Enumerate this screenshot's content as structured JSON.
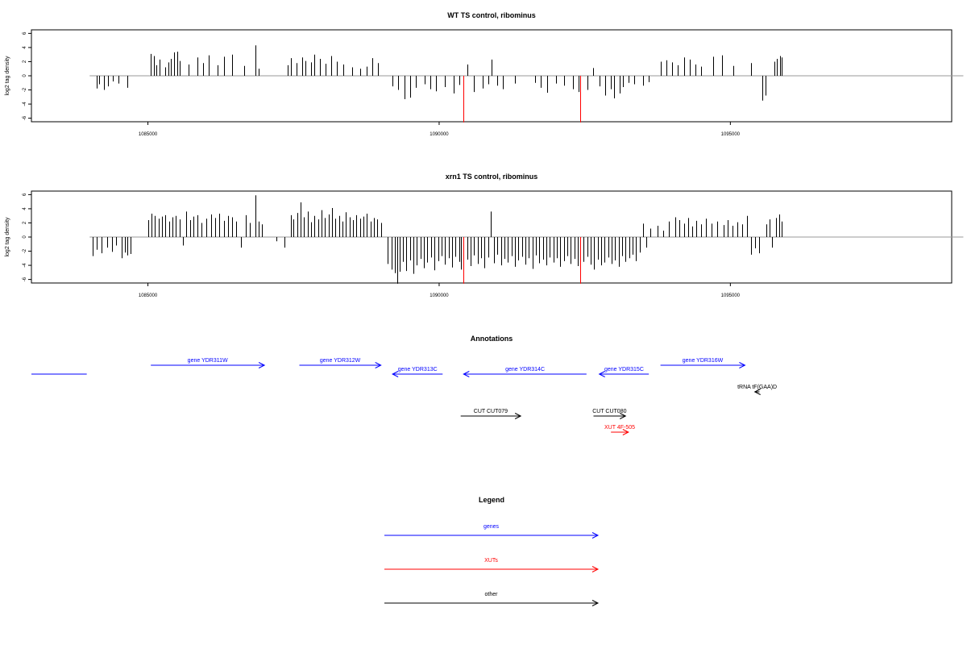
{
  "chart_data": [
    {
      "type": "bar",
      "title": "WT TS control, ribominus",
      "ylabel": "log2 tag density",
      "xlabel": "",
      "xlim": [
        1083000,
        1098800
      ],
      "ylim": [
        -6.5,
        6.5
      ],
      "yticks": [
        6,
        4,
        2,
        0,
        -2,
        -4,
        -6
      ],
      "xticks": [
        1085000,
        1090000,
        1095000
      ],
      "xtick_labels": [
        "1085000",
        "1090000",
        "1095000"
      ],
      "baseline": [
        1084000,
        1099000
      ],
      "colors": {
        "bars": "#000000",
        "highlight": "#ff0000",
        "baseline": "#999999"
      },
      "bars": [
        [
          1084120,
          -1.8
        ],
        [
          1084160,
          -1.2
        ],
        [
          1084250,
          -2
        ],
        [
          1084320,
          -1.5
        ],
        [
          1084400,
          -0.8
        ],
        [
          1084500,
          -1.1
        ],
        [
          1084640,
          -1.7
        ],
        [
          1085050,
          3.1
        ],
        [
          1085100,
          2.8
        ],
        [
          1085150,
          1.5
        ],
        [
          1085200,
          2.3
        ],
        [
          1085300,
          1.2
        ],
        [
          1085350,
          1.9
        ],
        [
          1085400,
          2.4
        ],
        [
          1085450,
          3.3
        ],
        [
          1085500,
          3.4
        ],
        [
          1085550,
          2.1
        ],
        [
          1085700,
          1.6
        ],
        [
          1085850,
          2.6
        ],
        [
          1085950,
          1.8
        ],
        [
          1086050,
          2.9
        ],
        [
          1086200,
          1.5
        ],
        [
          1086300,
          2.7
        ],
        [
          1086450,
          3.0
        ],
        [
          1086650,
          1.4
        ],
        [
          1086850,
          4.3
        ],
        [
          1086900,
          1.0
        ],
        [
          1087400,
          1.5
        ],
        [
          1087450,
          2.5
        ],
        [
          1087550,
          1.8
        ],
        [
          1087650,
          2.6
        ],
        [
          1087700,
          2.1
        ],
        [
          1087800,
          1.9
        ],
        [
          1087850,
          3.0
        ],
        [
          1087950,
          2.4
        ],
        [
          1088050,
          1.7
        ],
        [
          1088150,
          2.8
        ],
        [
          1088250,
          2.0
        ],
        [
          1088350,
          1.6
        ],
        [
          1088500,
          1.2
        ],
        [
          1088650,
          1.0
        ],
        [
          1088750,
          1.3
        ],
        [
          1088850,
          2.5
        ],
        [
          1088950,
          1.8
        ],
        [
          1089200,
          -1.5
        ],
        [
          1089300,
          -2.0
        ],
        [
          1089400,
          -3.3
        ],
        [
          1089500,
          -3.1
        ],
        [
          1089600,
          -1.7
        ],
        [
          1089750,
          -1.2
        ],
        [
          1089850,
          -1.9
        ],
        [
          1089950,
          -2.2
        ],
        [
          1090100,
          -1.6
        ],
        [
          1090250,
          -2.5
        ],
        [
          1090350,
          -1.3
        ],
        [
          1090420,
          -6.6
        ],
        [
          1090480,
          1.6
        ],
        [
          1090600,
          -2.3
        ],
        [
          1090750,
          -1.8
        ],
        [
          1090850,
          -1.2
        ],
        [
          1090900,
          2.3
        ],
        [
          1091000,
          -1.4
        ],
        [
          1091100,
          -1.9
        ],
        [
          1091300,
          -1.1
        ],
        [
          1091650,
          -1.0
        ],
        [
          1091750,
          -1.7
        ],
        [
          1091850,
          -2.4
        ],
        [
          1092000,
          -1.1
        ],
        [
          1092150,
          -1.4
        ],
        [
          1092300,
          -1.9
        ],
        [
          1092400,
          -2.3
        ],
        [
          1092420,
          -6.6
        ],
        [
          1092550,
          -2.0
        ],
        [
          1092650,
          1.1
        ],
        [
          1092750,
          -1.5
        ],
        [
          1092850,
          -2.8
        ],
        [
          1092950,
          -1.9
        ],
        [
          1093000,
          -3.2
        ],
        [
          1093100,
          -2.5
        ],
        [
          1093150,
          -1.6
        ],
        [
          1093250,
          -1.0
        ],
        [
          1093350,
          -1.2
        ],
        [
          1093500,
          -1.4
        ],
        [
          1093600,
          -0.9
        ],
        [
          1093800,
          2.0
        ],
        [
          1093900,
          2.2
        ],
        [
          1094000,
          1.9
        ],
        [
          1094100,
          1.5
        ],
        [
          1094200,
          2.6
        ],
        [
          1094300,
          2.3
        ],
        [
          1094400,
          1.6
        ],
        [
          1094500,
          1.3
        ],
        [
          1094700,
          2.7
        ],
        [
          1094850,
          2.9
        ],
        [
          1095050,
          1.4
        ],
        [
          1095350,
          1.8
        ],
        [
          1095550,
          -3.5
        ],
        [
          1095600,
          -2.8
        ],
        [
          1095750,
          2.0
        ],
        [
          1095800,
          2.4
        ],
        [
          1095850,
          2.8
        ],
        [
          1095880,
          2.6
        ]
      ],
      "highlight_x": [
        1090420,
        1092420
      ]
    },
    {
      "type": "bar",
      "title": "xrn1 TS control, ribominus",
      "ylabel": "log2 tag density",
      "xlabel": "",
      "xlim": [
        1083000,
        1098800
      ],
      "ylim": [
        -6.5,
        6.5
      ],
      "yticks": [
        6,
        4,
        2,
        0,
        -2,
        -4,
        -6
      ],
      "xticks": [
        1085000,
        1090000,
        1095000
      ],
      "xtick_labels": [
        "1085000",
        "1090000",
        "1095000"
      ],
      "baseline": [
        1084000,
        1099000
      ],
      "colors": {
        "bars": "#000000",
        "highlight": "#ff0000",
        "baseline": "#999999"
      },
      "bars": [
        [
          1084050,
          -2.7
        ],
        [
          1084120,
          -1.8
        ],
        [
          1084200,
          -2.3
        ],
        [
          1084300,
          -1.5
        ],
        [
          1084380,
          -2.1
        ],
        [
          1084450,
          -1.2
        ],
        [
          1084550,
          -3.0
        ],
        [
          1084600,
          -2.2
        ],
        [
          1084650,
          -2.6
        ],
        [
          1084700,
          -2.4
        ],
        [
          1085000,
          2.4
        ],
        [
          1085060,
          3.3
        ],
        [
          1085120,
          3.0
        ],
        [
          1085180,
          2.6
        ],
        [
          1085240,
          2.9
        ],
        [
          1085300,
          3.1
        ],
        [
          1085360,
          2.2
        ],
        [
          1085420,
          2.8
        ],
        [
          1085480,
          3.0
        ],
        [
          1085540,
          2.5
        ],
        [
          1085600,
          -1.2
        ],
        [
          1085660,
          3.6
        ],
        [
          1085720,
          2.4
        ],
        [
          1085780,
          2.9
        ],
        [
          1085850,
          3.1
        ],
        [
          1085920,
          2.0
        ],
        [
          1086000,
          2.6
        ],
        [
          1086080,
          3.2
        ],
        [
          1086150,
          2.7
        ],
        [
          1086220,
          3.3
        ],
        [
          1086300,
          2.3
        ],
        [
          1086380,
          3.0
        ],
        [
          1086450,
          2.8
        ],
        [
          1086520,
          2.2
        ],
        [
          1086600,
          -1.5
        ],
        [
          1086680,
          3.1
        ],
        [
          1086750,
          2.0
        ],
        [
          1086850,
          5.9
        ],
        [
          1086900,
          2.2
        ],
        [
          1086950,
          1.8
        ],
        [
          1087200,
          -0.6
        ],
        [
          1087350,
          -1.5
        ],
        [
          1087450,
          3.1
        ],
        [
          1087500,
          2.5
        ],
        [
          1087560,
          3.4
        ],
        [
          1087620,
          4.9
        ],
        [
          1087680,
          2.8
        ],
        [
          1087740,
          3.6
        ],
        [
          1087800,
          2.1
        ],
        [
          1087860,
          3.0
        ],
        [
          1087920,
          2.5
        ],
        [
          1087980,
          3.8
        ],
        [
          1088040,
          2.7
        ],
        [
          1088100,
          3.2
        ],
        [
          1088160,
          4.1
        ],
        [
          1088220,
          2.6
        ],
        [
          1088280,
          3.0
        ],
        [
          1088340,
          2.2
        ],
        [
          1088400,
          3.5
        ],
        [
          1088460,
          2.8
        ],
        [
          1088520,
          2.4
        ],
        [
          1088580,
          3.1
        ],
        [
          1088640,
          2.6
        ],
        [
          1088700,
          2.9
        ],
        [
          1088760,
          3.3
        ],
        [
          1088820,
          2.2
        ],
        [
          1088880,
          2.7
        ],
        [
          1088940,
          2.5
        ],
        [
          1089000,
          2.0
        ],
        [
          1089120,
          -3.8
        ],
        [
          1089180,
          -4.6
        ],
        [
          1089240,
          -5.1
        ],
        [
          1089280,
          -6.6
        ],
        [
          1089320,
          -4.9
        ],
        [
          1089380,
          -3.5
        ],
        [
          1089440,
          -4.8
        ],
        [
          1089500,
          -3.3
        ],
        [
          1089560,
          -5.2
        ],
        [
          1089620,
          -4.0
        ],
        [
          1089680,
          -3.1
        ],
        [
          1089740,
          -4.4
        ],
        [
          1089800,
          -3.6
        ],
        [
          1089860,
          -2.9
        ],
        [
          1089920,
          -4.7
        ],
        [
          1089980,
          -3.4
        ],
        [
          1090040,
          -2.7
        ],
        [
          1090100,
          -3.9
        ],
        [
          1090160,
          -3.0
        ],
        [
          1090220,
          -4.3
        ],
        [
          1090280,
          -2.8
        ],
        [
          1090340,
          -3.5
        ],
        [
          1090380,
          -4.6
        ],
        [
          1090420,
          -6.6
        ],
        [
          1090480,
          -3.2
        ],
        [
          1090540,
          -4.1
        ],
        [
          1090600,
          -2.6
        ],
        [
          1090660,
          -3.8
        ],
        [
          1090720,
          -3.0
        ],
        [
          1090780,
          -4.4
        ],
        [
          1090840,
          -2.9
        ],
        [
          1090880,
          3.6
        ],
        [
          1090940,
          -3.7
        ],
        [
          1091000,
          -2.5
        ],
        [
          1091060,
          -4.0
        ],
        [
          1091120,
          -3.1
        ],
        [
          1091180,
          -3.6
        ],
        [
          1091240,
          -2.7
        ],
        [
          1091300,
          -4.2
        ],
        [
          1091360,
          -3.3
        ],
        [
          1091420,
          -2.8
        ],
        [
          1091480,
          -3.9
        ],
        [
          1091540,
          -3.0
        ],
        [
          1091600,
          -4.5
        ],
        [
          1091660,
          -2.6
        ],
        [
          1091720,
          -3.7
        ],
        [
          1091780,
          -3.2
        ],
        [
          1091840,
          -4.0
        ],
        [
          1091900,
          -2.9
        ],
        [
          1091960,
          -3.6
        ],
        [
          1092020,
          -3.0
        ],
        [
          1092080,
          -4.2
        ],
        [
          1092140,
          -3.4
        ],
        [
          1092200,
          -2.7
        ],
        [
          1092260,
          -3.8
        ],
        [
          1092320,
          -3.1
        ],
        [
          1092380,
          -4.1
        ],
        [
          1092420,
          -6.6
        ],
        [
          1092480,
          -3.5
        ],
        [
          1092540,
          -2.8
        ],
        [
          1092600,
          -3.9
        ],
        [
          1092660,
          -4.6
        ],
        [
          1092720,
          -3.2
        ],
        [
          1092780,
          -4.0
        ],
        [
          1092840,
          -3.6
        ],
        [
          1092900,
          -2.9
        ],
        [
          1092960,
          -3.8
        ],
        [
          1093020,
          -3.3
        ],
        [
          1093080,
          -4.2
        ],
        [
          1093140,
          -2.7
        ],
        [
          1093200,
          -3.5
        ],
        [
          1093260,
          -3.0
        ],
        [
          1093320,
          -2.5
        ],
        [
          1093380,
          -3.4
        ],
        [
          1093440,
          -2.2
        ],
        [
          1093500,
          1.9
        ],
        [
          1093560,
          -1.5
        ],
        [
          1093620,
          1.2
        ],
        [
          1093750,
          1.6
        ],
        [
          1093850,
          0.9
        ],
        [
          1093950,
          2.2
        ],
        [
          1094050,
          2.8
        ],
        [
          1094120,
          2.4
        ],
        [
          1094200,
          1.9
        ],
        [
          1094280,
          2.7
        ],
        [
          1094350,
          1.5
        ],
        [
          1094420,
          2.3
        ],
        [
          1094500,
          1.8
        ],
        [
          1094580,
          2.6
        ],
        [
          1094680,
          1.9
        ],
        [
          1094780,
          2.2
        ],
        [
          1094880,
          1.7
        ],
        [
          1094960,
          2.4
        ],
        [
          1095040,
          1.6
        ],
        [
          1095120,
          2.1
        ],
        [
          1095200,
          1.8
        ],
        [
          1095280,
          3.0
        ],
        [
          1095350,
          -2.5
        ],
        [
          1095420,
          -1.6
        ],
        [
          1095500,
          -2.3
        ],
        [
          1095620,
          1.8
        ],
        [
          1095680,
          2.5
        ],
        [
          1095720,
          -1.5
        ],
        [
          1095780,
          2.7
        ],
        [
          1095840,
          3.2
        ],
        [
          1095880,
          2.2
        ]
      ],
      "highlight_x": [
        1090420,
        1092420
      ]
    }
  ],
  "annotations": {
    "title": "Annotations",
    "features": [
      {
        "label": "",
        "start": 1083000,
        "end": 1083950,
        "dir": "none",
        "row": 1,
        "color": "#0000ff"
      },
      {
        "label": "gene YDR311W",
        "start": 1085050,
        "end": 1087000,
        "dir": "right",
        "row": 0,
        "color": "#0000ff"
      },
      {
        "label": "gene YDR312W",
        "start": 1087600,
        "end": 1089000,
        "dir": "right",
        "row": 0,
        "color": "#0000ff"
      },
      {
        "label": "gene YDR313C",
        "start": 1089200,
        "end": 1090060,
        "dir": "left",
        "row": 1,
        "color": "#0000ff"
      },
      {
        "label": "gene YDR314C",
        "start": 1090420,
        "end": 1092530,
        "dir": "left",
        "row": 1,
        "color": "#0000ff"
      },
      {
        "label": "gene YDR315C",
        "start": 1092750,
        "end": 1093600,
        "dir": "left",
        "row": 1,
        "color": "#0000ff"
      },
      {
        "label": "gene YDR316W",
        "start": 1093800,
        "end": 1095250,
        "dir": "right",
        "row": 0,
        "color": "#0000ff"
      },
      {
        "label": "tRNA tF(GAA)D",
        "start": 1095420,
        "end": 1095500,
        "dir": "left",
        "row": 2,
        "color": "#000000"
      },
      {
        "label": "CUT CUT079",
        "start": 1090370,
        "end": 1091400,
        "dir": "right",
        "row": 3,
        "color": "#000000"
      },
      {
        "label": "CUT CUT080",
        "start": 1092650,
        "end": 1093200,
        "dir": "right",
        "row": 3,
        "color": "#000000"
      },
      {
        "label": "XUT 4F-505",
        "start": 1092950,
        "end": 1093250,
        "dir": "right",
        "row": 4,
        "color": "#ff0000"
      }
    ]
  },
  "legend": {
    "title": "Legend",
    "items": [
      {
        "label": "genes",
        "color": "#0000ff"
      },
      {
        "label": "XUTs",
        "color": "#ff0000"
      },
      {
        "label": "other",
        "color": "#000000"
      }
    ]
  }
}
